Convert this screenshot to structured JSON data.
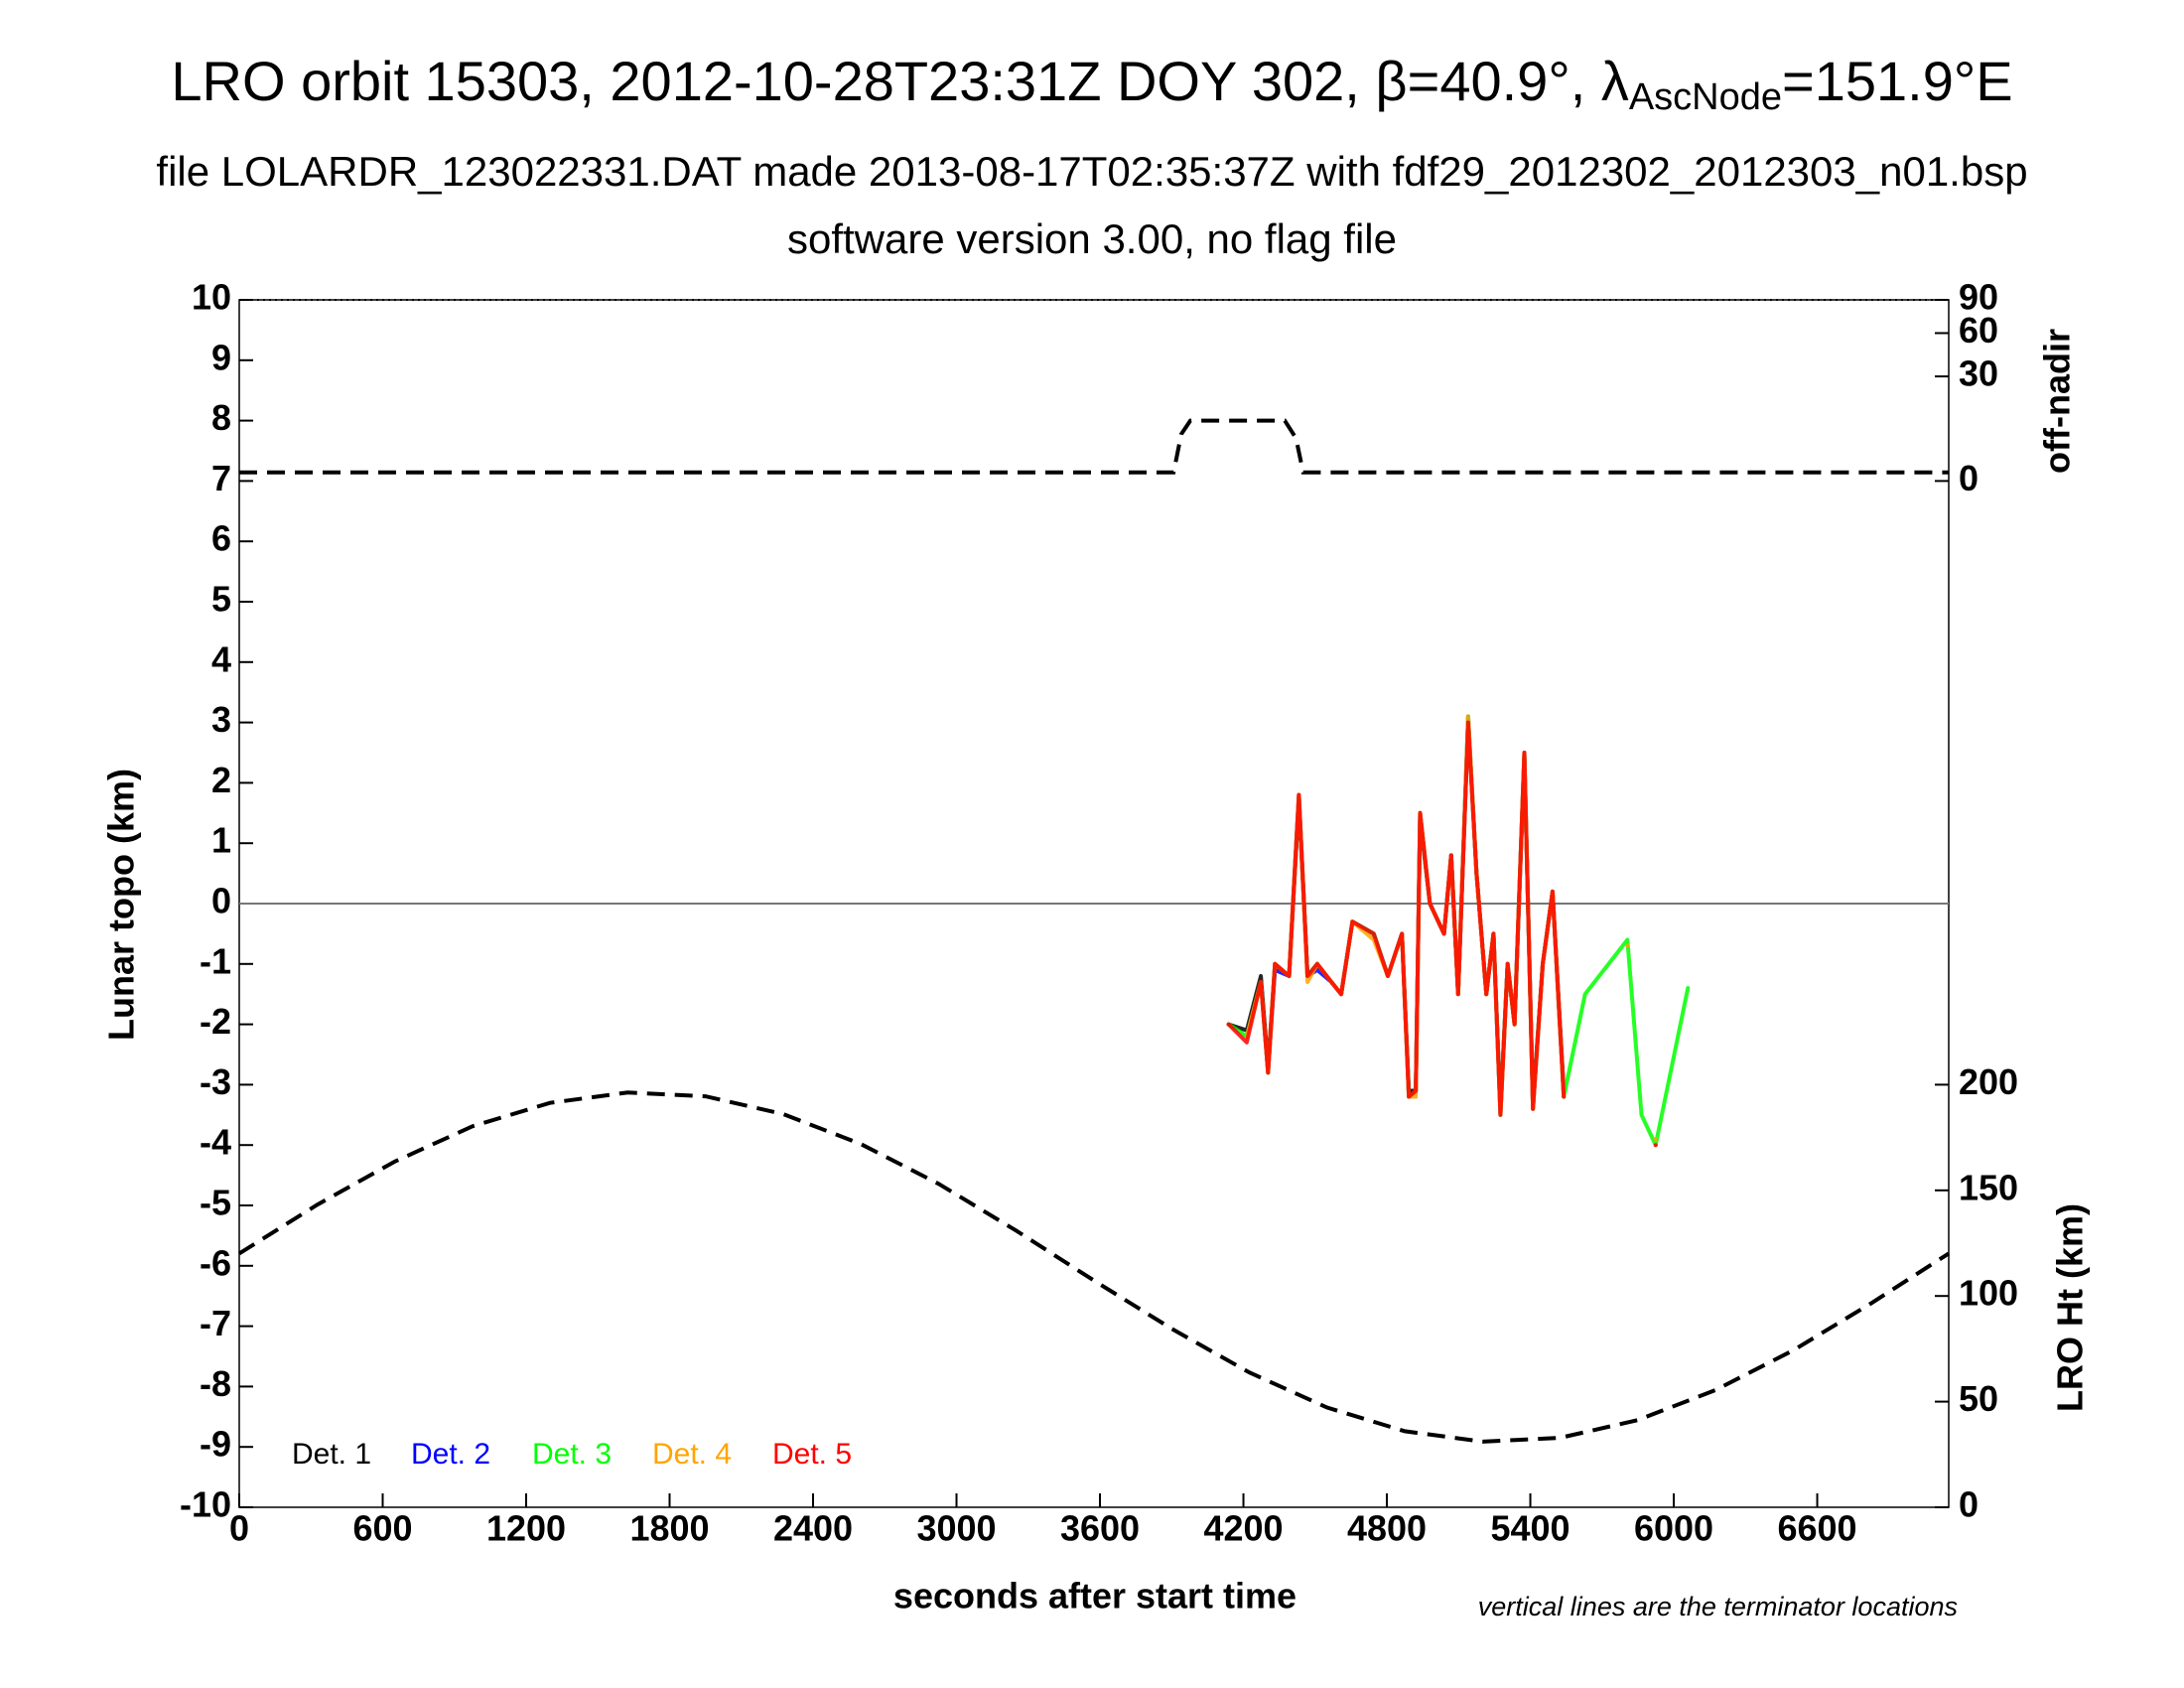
{
  "chart_data": {
    "type": "scatter",
    "title": "LRO orbit 15303, 2012-10-28T23:31Z DOY 302, β=40.9°, λ",
    "title_subscript": "AscNode",
    "title_suffix": "=151.9°E",
    "subtitle": "file LOLARDR_123022331.DAT made 2013-08-17T02:35:37Z with fdf29_2012302_2012303_n01.bsp",
    "subtitle2": "software version 3.00, no flag file",
    "xlabel": "seconds after start time",
    "ylabel": "Lunar topo (km)",
    "y2label": "off-nadir",
    "y3label": "LRO Ht (km)",
    "note": "vertical lines are the terminator locations",
    "xlim": [
      0,
      7150
    ],
    "xticks": [
      0,
      600,
      1200,
      1800,
      2400,
      3000,
      3600,
      4200,
      4800,
      5400,
      6000,
      6600
    ],
    "ylim": [
      -10,
      10
    ],
    "yticks": [
      -10,
      -9,
      -8,
      -7,
      -6,
      -5,
      -4,
      -3,
      -2,
      -1,
      0,
      1,
      2,
      3,
      4,
      5,
      6,
      7,
      8,
      9,
      10
    ],
    "y2lim": [
      0,
      90
    ],
    "y2ticks": [
      0,
      30,
      60,
      90
    ],
    "y2scale": "sqrt",
    "y3lim": [
      0,
      200
    ],
    "y3ticks": [
      0,
      50,
      100,
      150,
      200
    ],
    "x": [
      4138,
      4214,
      4273,
      4303,
      4332,
      4391,
      4432,
      4468,
      4509,
      4568,
      4609,
      4656,
      4745,
      4804,
      4863,
      4892,
      4921,
      4939,
      4980,
      5039,
      5069,
      5098,
      5140,
      5175,
      5216,
      5246,
      5275,
      5305,
      5334,
      5375,
      5411,
      5452,
      5493,
      5540,
      5629,
      5806,
      5865,
      5924,
      6059
    ],
    "series": [
      {
        "name": "Det. 1",
        "color": "#000000",
        "values": [
          -2.0,
          -2.1,
          -1.2,
          -2.7,
          -1.0,
          -1.2,
          1.7,
          -1.2,
          -1.0,
          -1.3,
          -1.5,
          -0.3,
          -0.5,
          -1.2,
          -0.5,
          -3.1,
          -3.1,
          1.4,
          0.0,
          -0.5,
          0.8,
          -1.5,
          3.0,
          0.5,
          -1.5,
          -0.5,
          -3.4,
          -1.0,
          -2.0,
          2.4,
          -3.3,
          -1.0,
          0.2,
          -3.1,
          null,
          null,
          null,
          null,
          null
        ]
      },
      {
        "name": "Det. 2",
        "color": "#0000ff",
        "values": [
          null,
          -2.2,
          -1.3,
          -2.8,
          -1.1,
          -1.2,
          1.8,
          -1.2,
          -1.1,
          -1.3,
          -1.5,
          -0.3,
          -0.5,
          -1.2,
          -0.5,
          -3.2,
          -3.1,
          1.5,
          0.0,
          -0.5,
          0.8,
          -1.5,
          3.1,
          0.5,
          -1.5,
          -0.5,
          -3.5,
          -1.0,
          -2.0,
          2.5,
          -3.4,
          -1.0,
          0.2,
          -3.2,
          null,
          null,
          null,
          null,
          null
        ]
      },
      {
        "name": "Det. 3",
        "color": "#00ff00",
        "values": [
          -2.0,
          -2.2,
          -1.3,
          -2.8,
          -1.0,
          -1.2,
          1.8,
          -1.2,
          -1.0,
          -1.3,
          -1.5,
          -0.3,
          -0.5,
          -1.2,
          -0.5,
          -3.2,
          -3.1,
          1.5,
          0.0,
          -0.5,
          0.8,
          -1.5,
          3.1,
          0.5,
          -1.5,
          -0.5,
          -3.5,
          -1.0,
          -2.0,
          2.5,
          -3.4,
          -1.0,
          0.2,
          -3.2,
          -1.5,
          -0.6,
          -3.5,
          -4.0,
          -1.4
        ]
      },
      {
        "name": "Det. 4",
        "color": "#ffa500",
        "values": [
          null,
          -2.2,
          -1.3,
          -2.8,
          -1.0,
          -1.2,
          1.8,
          -1.3,
          -1.0,
          -1.3,
          -1.5,
          -0.3,
          -0.6,
          -1.2,
          -0.5,
          -3.2,
          -3.2,
          1.5,
          0.0,
          -0.5,
          0.8,
          -1.5,
          3.1,
          0.5,
          -1.5,
          -0.5,
          -3.5,
          -1.0,
          -2.0,
          2.5,
          -3.4,
          -1.0,
          0.2,
          -3.2,
          null,
          -0.7,
          null,
          -3.9,
          null
        ]
      },
      {
        "name": "Det. 5",
        "color": "#ff0000",
        "values": [
          -2.0,
          -2.3,
          -1.3,
          -2.8,
          -1.0,
          -1.2,
          1.8,
          -1.2,
          -1.0,
          -1.3,
          -1.5,
          -0.3,
          -0.5,
          -1.2,
          -0.5,
          -3.2,
          -3.1,
          1.5,
          0.0,
          -0.5,
          0.8,
          -1.5,
          3.0,
          0.5,
          -1.5,
          -0.5,
          -3.5,
          -1.0,
          -2.0,
          2.5,
          -3.4,
          -1.0,
          0.2,
          -3.2,
          null,
          null,
          null,
          -4.0,
          null
        ]
      }
    ],
    "offnadir": {
      "axis": "y2",
      "x": [
        0,
        3908,
        3940,
        3978,
        4373,
        4420,
        4450,
        7150
      ],
      "values": [
        0.2,
        0.2,
        6,
        10,
        10,
        5,
        0.2,
        0.2
      ]
    },
    "height": {
      "axis": "y3",
      "x": [
        0,
        325,
        650,
        975,
        1300,
        1625,
        1950,
        2275,
        2600,
        2925,
        3250,
        3575,
        3900,
        4225,
        4550,
        4875,
        5200,
        5525,
        5850,
        6175,
        6500,
        6825,
        7150
      ],
      "values": [
        120.1,
        143.1,
        163.6,
        180.3,
        191.4,
        196.3,
        194.5,
        186.1,
        171.9,
        153.1,
        130.9,
        107.3,
        84.5,
        63.8,
        47.2,
        36.0,
        31.1,
        32.9,
        41.3,
        55.5,
        74.3,
        96.5,
        120.1
      ]
    }
  }
}
